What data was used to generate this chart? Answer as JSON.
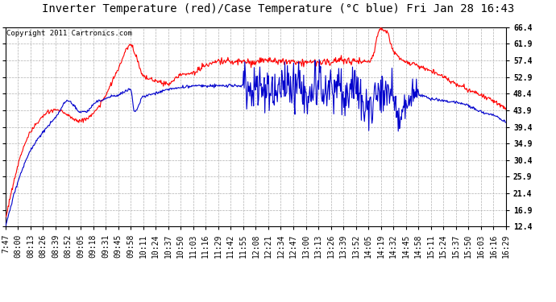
{
  "title": "Inverter Temperature (red)/Case Temperature (°C blue) Fri Jan 28 16:43",
  "copyright": "Copyright 2011 Cartronics.com",
  "yticks": [
    12.4,
    16.9,
    21.4,
    25.9,
    30.4,
    34.9,
    39.4,
    43.9,
    48.4,
    52.9,
    57.4,
    61.9,
    66.4
  ],
  "ymin": 12.4,
  "ymax": 66.4,
  "red_color": "#ff0000",
  "blue_color": "#0000cc",
  "bg_color": "#ffffff",
  "grid_color": "#b0b0b0",
  "title_fontsize": 10,
  "copyright_fontsize": 6.5,
  "tick_fontsize": 7,
  "xtick_labels": [
    "7:47",
    "08:00",
    "08:13",
    "08:26",
    "08:39",
    "08:52",
    "09:05",
    "09:18",
    "09:31",
    "09:45",
    "09:58",
    "10:11",
    "10:24",
    "10:37",
    "10:50",
    "11:03",
    "11:16",
    "11:29",
    "11:42",
    "11:55",
    "12:08",
    "12:21",
    "12:34",
    "12:47",
    "13:00",
    "13:13",
    "13:26",
    "13:39",
    "13:52",
    "14:05",
    "14:19",
    "14:32",
    "14:45",
    "14:58",
    "15:11",
    "15:24",
    "15:37",
    "15:50",
    "16:03",
    "16:16",
    "16:29"
  ],
  "red_keypoints_x": [
    0,
    2,
    4,
    6,
    7,
    8,
    9,
    10,
    10.5,
    11,
    12,
    13,
    14,
    15,
    16,
    17,
    18,
    19,
    20,
    21,
    22,
    23,
    24,
    25,
    26,
    27,
    28,
    29,
    29.3,
    29.7,
    30,
    30.5,
    31,
    32,
    33,
    34,
    35,
    36,
    37,
    38,
    39,
    40
  ],
  "red_keypoints_y": [
    14.5,
    38,
    44,
    41,
    43,
    48,
    55,
    61.5,
    58,
    53,
    52,
    51,
    53.5,
    54,
    56,
    57,
    57,
    57,
    57,
    57.5,
    57,
    57,
    57,
    57,
    57,
    57.5,
    57,
    57,
    58,
    63.5,
    66,
    65,
    60,
    57,
    56,
    54.5,
    53,
    51,
    49.5,
    48,
    46.5,
    44.2
  ],
  "blue_keypoints_x": [
    0,
    2,
    3,
    4,
    5,
    6,
    6.5,
    7,
    8,
    9,
    10,
    10.3,
    11,
    12,
    13,
    14,
    15,
    16,
    17,
    18,
    19,
    20,
    21,
    22,
    23,
    24,
    25,
    26,
    27,
    28,
    29,
    30,
    30.5,
    31,
    31.5,
    32,
    33,
    34,
    35,
    36,
    37,
    38,
    39,
    40
  ],
  "blue_keypoints_y": [
    12.4,
    33,
    38,
    42,
    46.5,
    43.5,
    43.5,
    45.5,
    47,
    48,
    49.5,
    43.5,
    47.5,
    48.5,
    49.5,
    50,
    50.5,
    50.5,
    50.5,
    50.5,
    50.5,
    50.5,
    50,
    49.5,
    50.5,
    50,
    50,
    50,
    50,
    50,
    44,
    48.5,
    50,
    47,
    41,
    46,
    48,
    47,
    46.5,
    46,
    45,
    43.5,
    42.5,
    40.5
  ]
}
